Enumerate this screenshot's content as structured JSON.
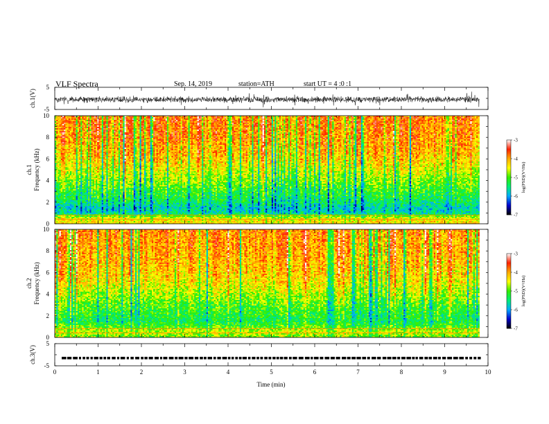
{
  "header": {
    "title": "VLF Spectra",
    "date": "Sep. 14, 2019",
    "station": "station=ATH",
    "start": "start UT = 4 :0 :1"
  },
  "chart_data": [
    {
      "type": "line",
      "panel": "ch1-waveform",
      "ylabel": "ch.1(V)",
      "ylim": [
        -5,
        5
      ],
      "yticks": [
        "5",
        "-5"
      ],
      "xlim": [
        0,
        10
      ],
      "data_end_min": 9.8,
      "baseline_v": -0.5,
      "amplitude_v": 1.6
    },
    {
      "type": "heatmap",
      "panel": "ch1-spectrogram",
      "ylabel_top": "ch.1",
      "ylabel": "Frequency (kHz)",
      "ylim": [
        0,
        10
      ],
      "yticks": [
        "0",
        "2",
        "4",
        "6",
        "8",
        "10"
      ],
      "xlim": [
        0,
        10
      ],
      "data_end_min": 9.8,
      "colorbar": {
        "label": "log(PSD)(V²/Hz)",
        "range": [
          -7,
          -3
        ],
        "ticks": [
          "-3",
          "-4",
          "-5",
          "-6",
          "-7"
        ],
        "colors": [
          "#000000",
          "#0000cc",
          "#00aaff",
          "#00ee77",
          "#33ee00",
          "#ffff00",
          "#ffaa00",
          "#ff2200",
          "#ffffff"
        ]
      },
      "typical_profile": [
        {
          "freq_khz": 0.0,
          "log_psd": -4.3
        },
        {
          "freq_khz": 0.5,
          "log_psd": -4.4
        },
        {
          "freq_khz": 1.0,
          "log_psd": -5.6
        },
        {
          "freq_khz": 1.5,
          "log_psd": -5.7
        },
        {
          "freq_khz": 2.0,
          "log_psd": -5.4
        },
        {
          "freq_khz": 3.0,
          "log_psd": -5.1
        },
        {
          "freq_khz": 4.0,
          "log_psd": -4.8
        },
        {
          "freq_khz": 5.0,
          "log_psd": -4.5
        },
        {
          "freq_khz": 6.0,
          "log_psd": -4.2
        },
        {
          "freq_khz": 8.0,
          "log_psd": -3.9
        },
        {
          "freq_khz": 10.0,
          "log_psd": -3.8
        }
      ]
    },
    {
      "type": "heatmap",
      "panel": "ch2-spectrogram",
      "ylabel_top": "ch.2",
      "ylabel": "Frequency (kHz)",
      "ylim": [
        0,
        10
      ],
      "yticks": [
        "0",
        "2",
        "4",
        "6",
        "8",
        "10"
      ],
      "xlim": [
        0,
        10
      ],
      "data_end_min": 9.8,
      "colorbar": {
        "label": "log(PSD)(V²/Hz)",
        "range": [
          -7,
          -3
        ],
        "ticks": [
          "-3",
          "-4",
          "-5",
          "-6",
          "-7"
        ],
        "colors": [
          "#000000",
          "#0000cc",
          "#00aaff",
          "#00ee77",
          "#33ee00",
          "#ffff00",
          "#ffaa00",
          "#ff2200",
          "#ffffff"
        ]
      },
      "typical_profile": [
        {
          "freq_khz": 0.0,
          "log_psd": -4.9
        },
        {
          "freq_khz": 0.5,
          "log_psd": -4.6
        },
        {
          "freq_khz": 1.0,
          "log_psd": -5.0
        },
        {
          "freq_khz": 1.5,
          "log_psd": -5.3
        },
        {
          "freq_khz": 2.0,
          "log_psd": -5.2
        },
        {
          "freq_khz": 3.0,
          "log_psd": -5.0
        },
        {
          "freq_khz": 4.0,
          "log_psd": -4.7
        },
        {
          "freq_khz": 5.0,
          "log_psd": -4.4
        },
        {
          "freq_khz": 6.0,
          "log_psd": -4.2
        },
        {
          "freq_khz": 8.0,
          "log_psd": -4.0
        },
        {
          "freq_khz": 10.0,
          "log_psd": -3.9
        }
      ]
    },
    {
      "type": "line",
      "panel": "ch3-waveform",
      "ylabel": "ch.3(V)",
      "ylim": [
        -5,
        5
      ],
      "yticks": [
        "5",
        "-5"
      ],
      "xlim": [
        0,
        10
      ],
      "xlabel": "Time (min)",
      "xticks": [
        "0",
        "1",
        "2",
        "3",
        "4",
        "5",
        "6",
        "7",
        "8",
        "9",
        "10"
      ],
      "data_end_min": 9.8,
      "level_v": -1.5
    }
  ]
}
